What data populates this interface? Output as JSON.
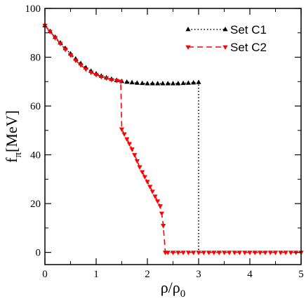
{
  "chart_data": {
    "type": "line",
    "xlim": [
      0,
      5
    ],
    "ylim": [
      -5,
      100
    ],
    "xticks": [
      0,
      1,
      2,
      3,
      4,
      5
    ],
    "yticks": [
      0,
      20,
      40,
      60,
      80,
      100
    ],
    "xticks_minor": [
      0.5,
      1.5,
      2.5,
      3.5,
      4.5
    ],
    "yticks_minor": [
      10,
      30,
      50,
      70,
      90
    ],
    "xlabel": {
      "main": "ρ/ρ",
      "sub": "0"
    },
    "ylabel": {
      "main": "f",
      "sub": "π",
      "unit": "[MeV]"
    },
    "legend_position": "top-right",
    "grid": false,
    "series": [
      {
        "name": "Set C1",
        "color": "#000000",
        "line_style": "dotted",
        "marker": "triangle-up",
        "x": [
          0,
          0.1,
          0.2,
          0.3,
          0.4,
          0.5,
          0.6,
          0.7,
          0.8,
          0.9,
          1.0,
          1.1,
          1.2,
          1.3,
          1.4,
          1.5,
          1.6,
          1.7,
          1.8,
          1.9,
          2.0,
          2.1,
          2.2,
          2.3,
          2.4,
          2.5,
          2.6,
          2.7,
          2.8,
          2.9,
          3.0,
          3.0
        ],
        "y": [
          93,
          90.6,
          88.2,
          85.9,
          83.6,
          81.4,
          79.3,
          77.4,
          75.7,
          74.3,
          73.2,
          72.3,
          71.6,
          71.0,
          70.5,
          70.1,
          69.8,
          69.6,
          69.4,
          69.3,
          69.2,
          69.2,
          69.2,
          69.2,
          69.2,
          69.2,
          69.2,
          69.3,
          69.4,
          69.5,
          69.7,
          0
        ]
      },
      {
        "name": "Set C2",
        "color": "#ff0000",
        "line_style": "dashed",
        "marker": "triangle-down",
        "x": [
          0,
          0.1,
          0.2,
          0.3,
          0.4,
          0.5,
          0.6,
          0.7,
          0.8,
          0.9,
          1.0,
          1.1,
          1.2,
          1.3,
          1.4,
          1.48,
          1.5,
          1.55,
          1.6,
          1.65,
          1.7,
          1.75,
          1.8,
          1.85,
          1.9,
          1.95,
          2.0,
          2.05,
          2.1,
          2.15,
          2.2,
          2.25,
          2.28,
          2.31,
          2.35,
          2.4,
          2.5,
          2.6,
          2.7,
          2.8,
          2.9,
          3.0,
          3.1,
          3.2,
          3.3,
          3.4,
          3.5,
          3.6,
          3.7,
          3.8,
          3.9,
          4.0,
          4.1,
          4.2,
          4.3,
          4.4,
          4.5,
          4.6,
          4.7,
          4.8,
          4.9,
          5.0
        ],
        "y": [
          93,
          90.5,
          88.0,
          85.6,
          83.2,
          80.9,
          78.7,
          76.8,
          75.1,
          73.8,
          72.8,
          72.0,
          71.4,
          70.8,
          70.4,
          70.1,
          50.5,
          48.5,
          46.5,
          44.5,
          42.3,
          40.0,
          37.5,
          35.0,
          33.0,
          31.0,
          29.0,
          27.0,
          25.0,
          23.0,
          21.0,
          19.0,
          16.0,
          11.0,
          0,
          0,
          0,
          0,
          0,
          0,
          0,
          0,
          0,
          0,
          0,
          0,
          0,
          0,
          0,
          0,
          0,
          0,
          0,
          0,
          0,
          0,
          0,
          0,
          0,
          0,
          0,
          0
        ]
      }
    ]
  }
}
